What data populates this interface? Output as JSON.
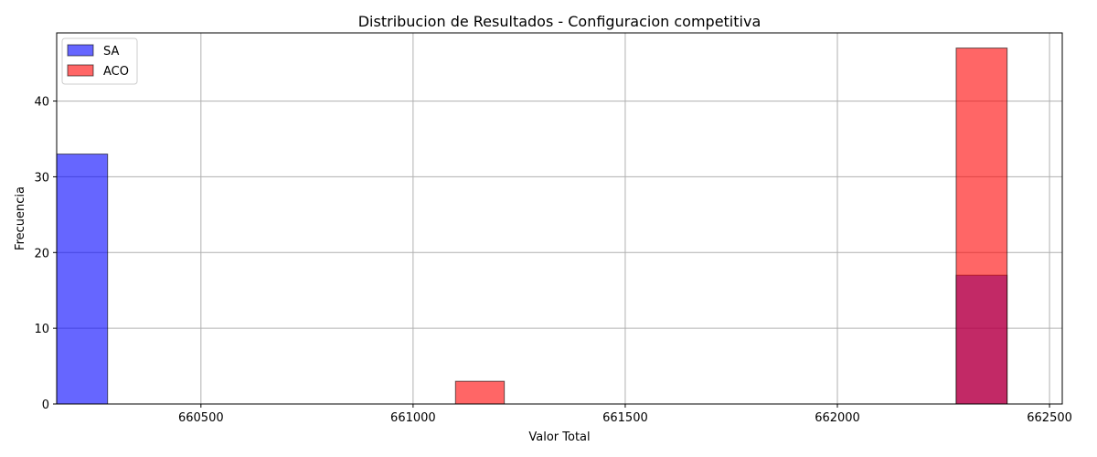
{
  "chart_data": {
    "type": "bar",
    "title": "Distribucion de Resultados - Configuracion competitiva",
    "xlabel": "Valor Total",
    "ylabel": "Frecuencia",
    "xlim": [
      660160,
      662530
    ],
    "ylim": [
      0,
      49
    ],
    "xticks": [
      660500,
      661000,
      661500,
      662000,
      662500
    ],
    "yticks": [
      0,
      10,
      20,
      30,
      40
    ],
    "grid": true,
    "legend_position": "top-left",
    "series": [
      {
        "name": "SA",
        "color": "#0000ff",
        "bins": [
          {
            "x0": 660160,
            "x1": 660280,
            "value": 33
          },
          {
            "x0": 662280,
            "x1": 662400,
            "value": 17
          }
        ]
      },
      {
        "name": "ACO",
        "color": "#ff0000",
        "bins": [
          {
            "x0": 661100,
            "x1": 661215,
            "value": 3
          },
          {
            "x0": 662280,
            "x1": 662400,
            "value": 47
          }
        ]
      }
    ]
  }
}
